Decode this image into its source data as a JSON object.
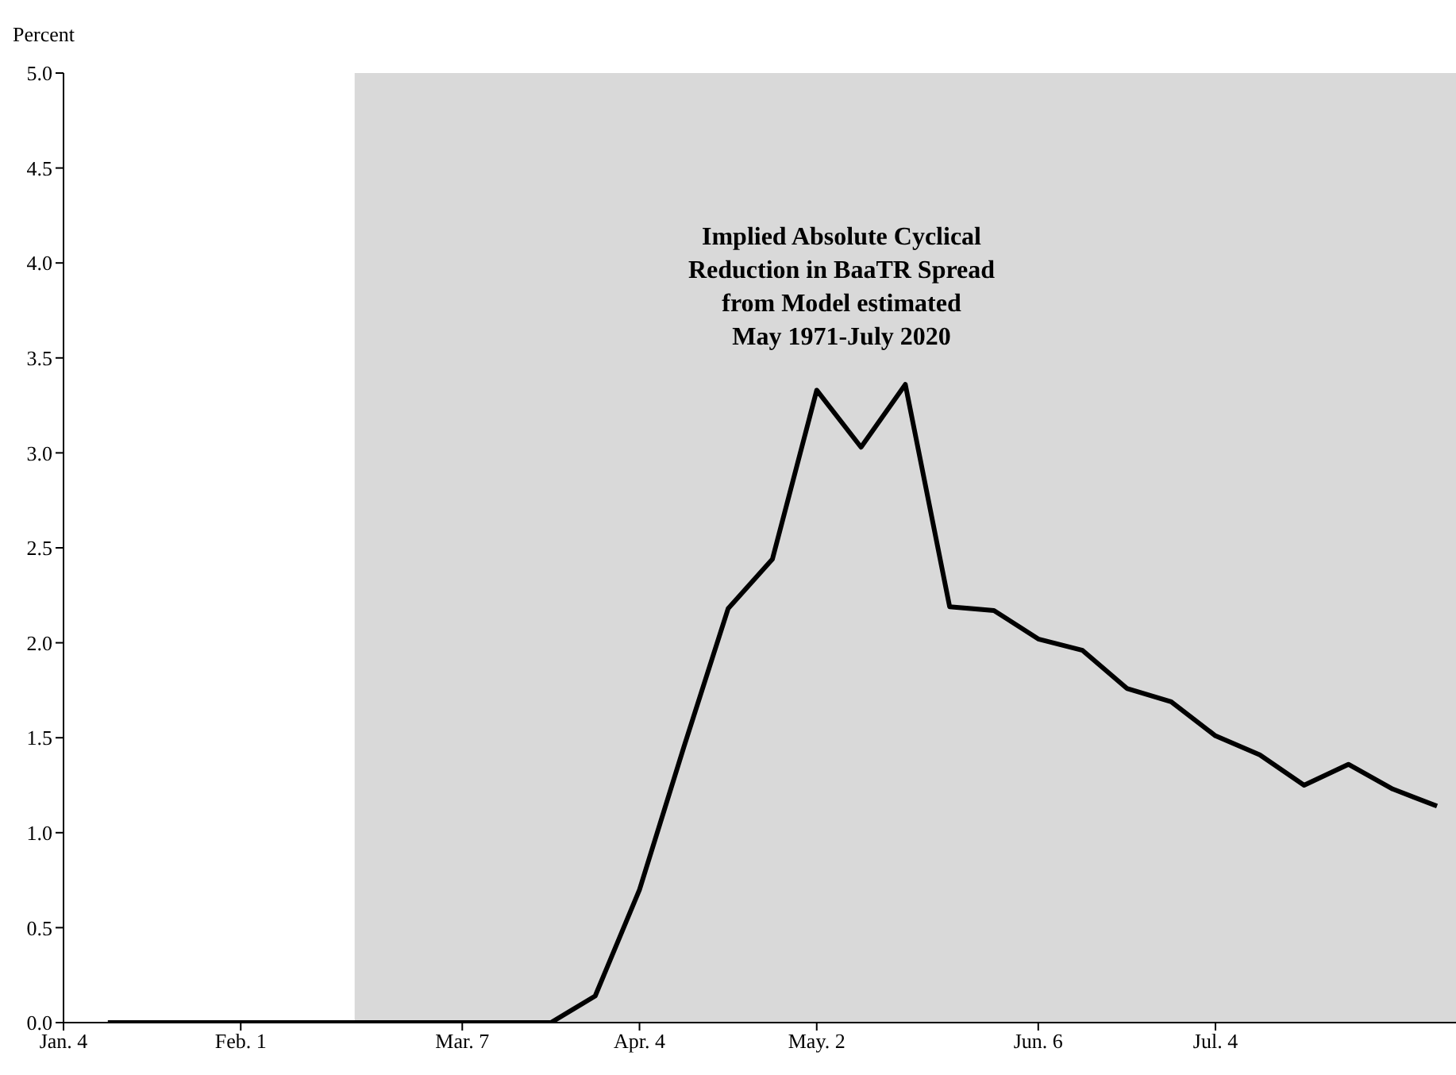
{
  "chart_data": {
    "type": "line",
    "ylabel": "Percent",
    "annotations": [
      "Implied Absolute Cyclical\nReduction in BaaTR Spread\nfrom Model estimated\nMay 1971-July 2020"
    ],
    "x": [
      "2020-01-11",
      "2020-01-18",
      "2020-01-25",
      "2020-02-01",
      "2020-02-08",
      "2020-02-15",
      "2020-02-22",
      "2020-02-29",
      "2020-03-07",
      "2020-03-14",
      "2020-03-21",
      "2020-03-28",
      "2020-04-04",
      "2020-04-11",
      "2020-04-18",
      "2020-04-25",
      "2020-05-02",
      "2020-05-09",
      "2020-05-16",
      "2020-05-23",
      "2020-05-30",
      "2020-06-06",
      "2020-06-13",
      "2020-06-20",
      "2020-06-27",
      "2020-07-04",
      "2020-07-11",
      "2020-07-18",
      "2020-07-25",
      "2020-08-01",
      "2020-08-08"
    ],
    "series": [
      {
        "color": "#000000",
        "values": [
          0,
          0,
          0,
          0,
          0,
          0,
          0,
          0,
          0,
          0,
          0,
          0.14,
          0.7,
          1.45,
          2.18,
          2.44,
          3.33,
          3.03,
          3.36,
          2.19,
          2.17,
          2.02,
          1.96,
          1.76,
          1.69,
          1.51,
          1.41,
          1.25,
          1.36,
          1.23,
          1.14
        ]
      }
    ],
    "xlim": [
      "2020-01-04",
      "2020-08-11"
    ],
    "xticks": [
      {
        "value": "2020-01-04",
        "label": "Jan. 4"
      },
      {
        "value": "2020-02-01",
        "label": "Feb. 1"
      },
      {
        "value": "2020-03-07",
        "label": "Mar. 7"
      },
      {
        "value": "2020-04-04",
        "label": "Apr. 4"
      },
      {
        "value": "2020-05-02",
        "label": "May. 2"
      },
      {
        "value": "2020-06-06",
        "label": "Jun. 6"
      },
      {
        "value": "2020-07-04",
        "label": "Jul. 4"
      }
    ],
    "ylim": [
      0,
      5
    ],
    "yticks": [
      {
        "value": 0,
        "label": "0.0"
      },
      {
        "value": 0.5,
        "label": "0.5"
      },
      {
        "value": 1,
        "label": "1.0"
      },
      {
        "value": 1.5,
        "label": "1.5"
      },
      {
        "value": 2,
        "label": "2.0"
      },
      {
        "value": 2.5,
        "label": "2.5"
      },
      {
        "value": 3,
        "label": "3.0"
      },
      {
        "value": 3.5,
        "label": "3.5"
      },
      {
        "value": 4,
        "label": "4.0"
      },
      {
        "value": 4.5,
        "label": "4.5"
      },
      {
        "value": 5,
        "label": "5.0"
      }
    ],
    "bands": [
      {
        "axis": "x",
        "from": "2020-02-19",
        "to": "2020-08-11",
        "color": "#d9d9d9"
      }
    ],
    "grid": false,
    "legend": false,
    "marker": "none",
    "line_style": "solid"
  }
}
